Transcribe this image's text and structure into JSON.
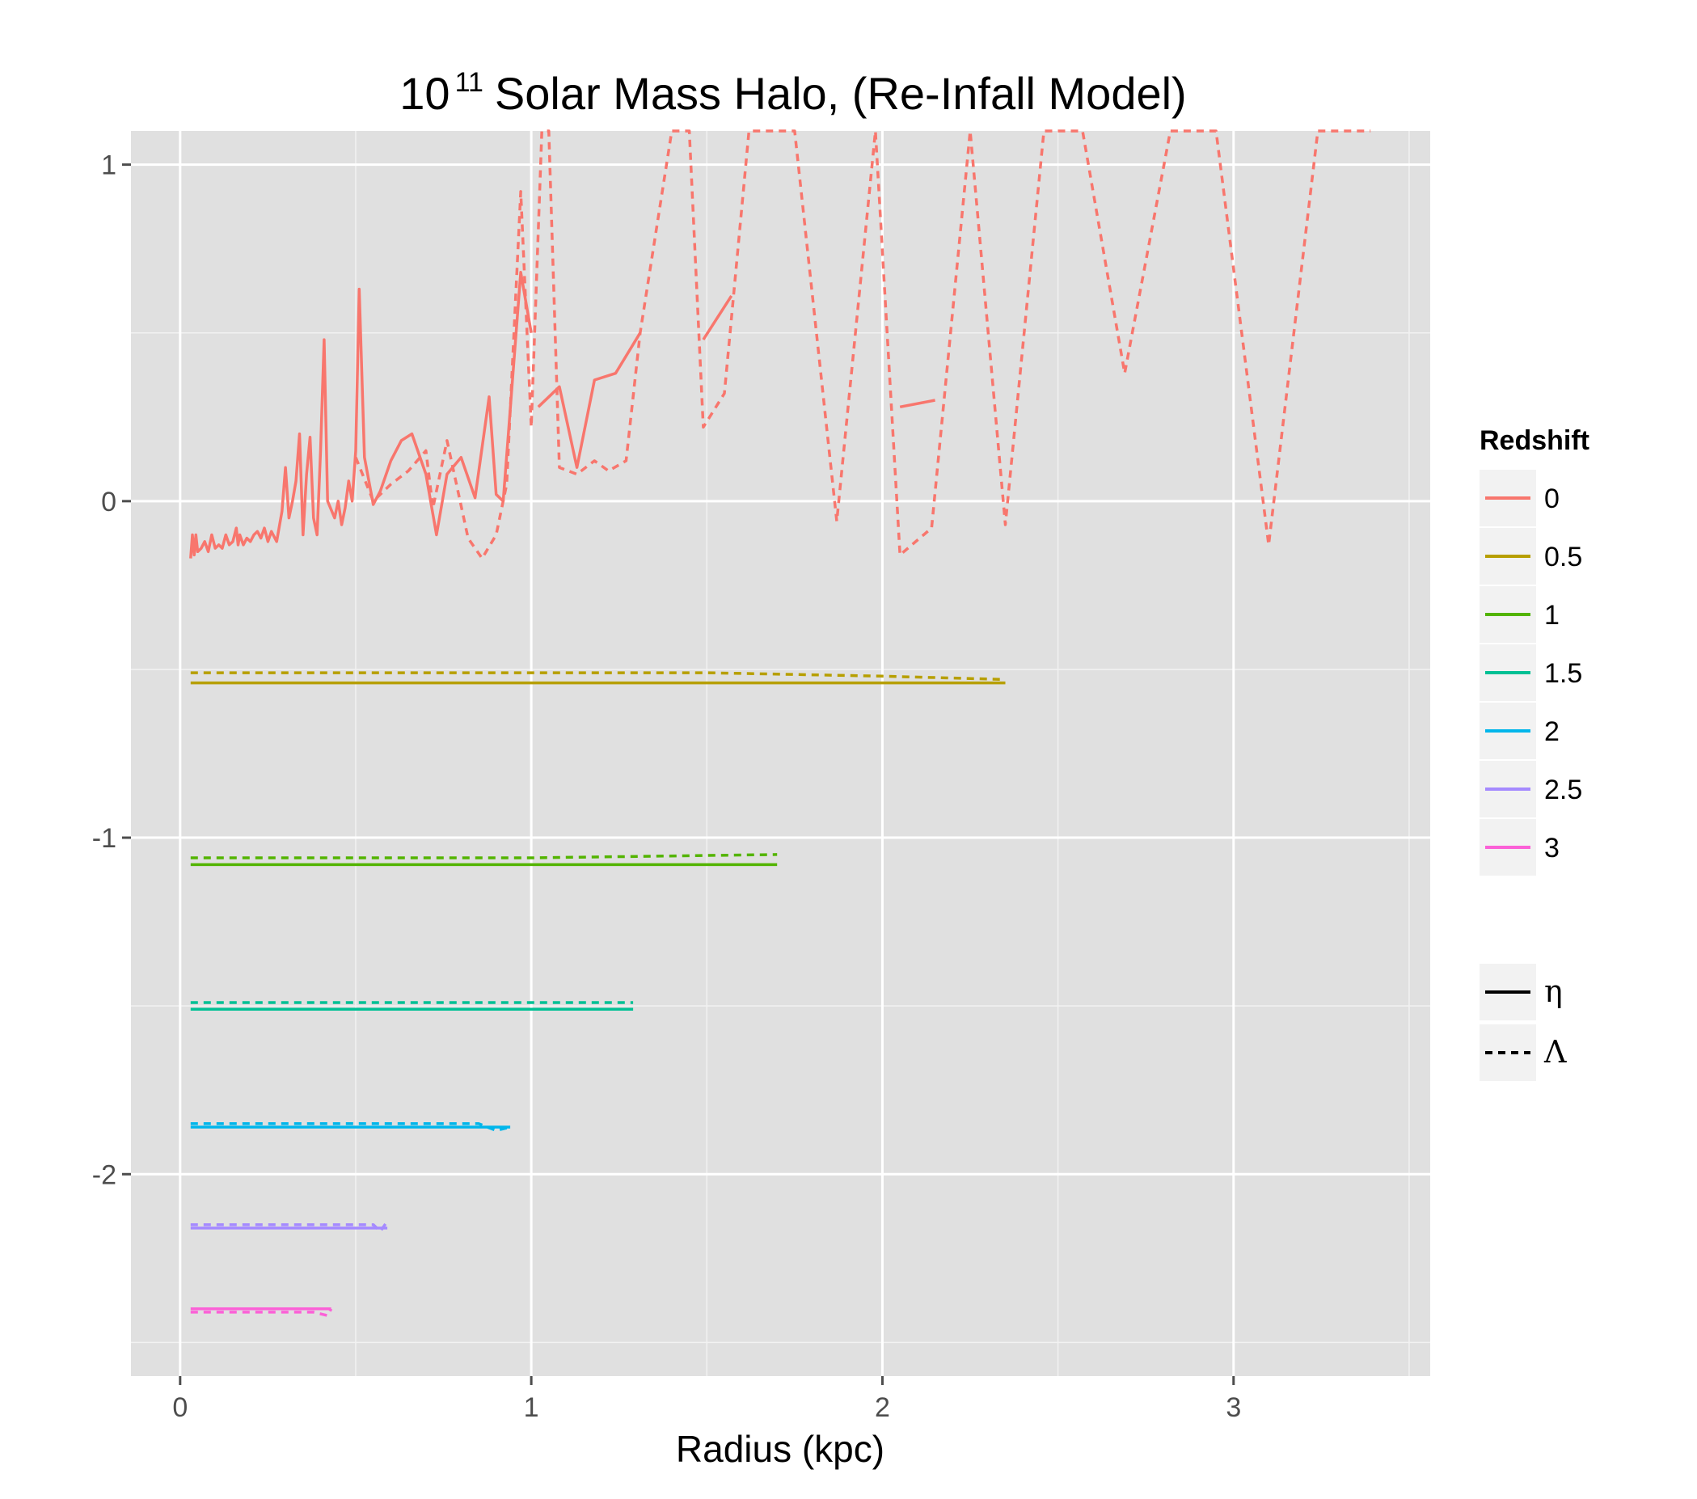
{
  "chart_data": {
    "type": "line",
    "title": {
      "base": "10",
      "exponent": "11",
      "rest": "Solar Mass Halo, (Re-Infall Model)"
    },
    "xlabel": "Radius (kpc)",
    "ylabel": "",
    "xlim": [
      -0.14,
      3.56
    ],
    "ylim": [
      -2.6,
      1.1
    ],
    "x_ticks": [
      0,
      1,
      2,
      3
    ],
    "x_tick_labels": [
      "0",
      "1",
      "2",
      "3"
    ],
    "y_ticks": [
      1,
      0,
      -1,
      -2
    ],
    "y_tick_labels": [
      "1",
      "0",
      "-1",
      "-2"
    ],
    "grid": true,
    "panel_background": "#e0e0e0",
    "legend": {
      "position": "right",
      "color_title": "Redshift",
      "color_items": [
        {
          "label": "0",
          "color": "#f8766d"
        },
        {
          "label": "0.5",
          "color": "#b79f00"
        },
        {
          "label": "1",
          "color": "#53b400"
        },
        {
          "label": "1.5",
          "color": "#00c094"
        },
        {
          "label": "2",
          "color": "#00b6eb"
        },
        {
          "label": "2.5",
          "color": "#a58aff"
        },
        {
          "label": "3",
          "color": "#fb61d7"
        }
      ],
      "linetype_items": [
        {
          "label": "η",
          "linetype": "solid"
        },
        {
          "label": "Λ",
          "linetype": "dashed"
        }
      ]
    },
    "series": [
      {
        "redshift": "0",
        "linetype": "solid",
        "color": "#f8766d",
        "segments": [
          [
            [
              0.03,
              -0.17
            ],
            [
              0.035,
              -0.1
            ],
            [
              0.04,
              -0.16
            ],
            [
              0.045,
              -0.1
            ],
            [
              0.05,
              -0.15
            ],
            [
              0.06,
              -0.14
            ],
            [
              0.07,
              -0.12
            ],
            [
              0.08,
              -0.15
            ],
            [
              0.09,
              -0.1
            ],
            [
              0.1,
              -0.14
            ],
            [
              0.11,
              -0.13
            ],
            [
              0.12,
              -0.14
            ],
            [
              0.13,
              -0.1
            ],
            [
              0.14,
              -0.13
            ],
            [
              0.15,
              -0.12
            ],
            [
              0.16,
              -0.08
            ],
            [
              0.165,
              -0.13
            ],
            [
              0.17,
              -0.1
            ],
            [
              0.18,
              -0.13
            ],
            [
              0.19,
              -0.11
            ],
            [
              0.2,
              -0.12
            ],
            [
              0.21,
              -0.1
            ],
            [
              0.22,
              -0.09
            ],
            [
              0.23,
              -0.11
            ],
            [
              0.24,
              -0.08
            ],
            [
              0.25,
              -0.12
            ],
            [
              0.26,
              -0.09
            ],
            [
              0.275,
              -0.12
            ],
            [
              0.29,
              -0.03
            ],
            [
              0.3,
              0.1
            ],
            [
              0.31,
              -0.05
            ],
            [
              0.32,
              0.0
            ],
            [
              0.33,
              0.06
            ],
            [
              0.34,
              0.2
            ],
            [
              0.35,
              -0.1
            ],
            [
              0.36,
              0.08
            ],
            [
              0.37,
              0.19
            ],
            [
              0.38,
              -0.05
            ],
            [
              0.39,
              -0.1
            ],
            [
              0.4,
              0.15
            ],
            [
              0.41,
              0.48
            ],
            [
              0.42,
              0.0
            ],
            [
              0.44,
              -0.05
            ],
            [
              0.45,
              0.0
            ],
            [
              0.46,
              -0.07
            ],
            [
              0.47,
              -0.02
            ],
            [
              0.48,
              0.06
            ],
            [
              0.49,
              0.0
            ],
            [
              0.5,
              0.15
            ],
            [
              0.51,
              0.63
            ],
            [
              0.525,
              0.13
            ],
            [
              0.55,
              -0.01
            ],
            [
              0.57,
              0.03
            ],
            [
              0.6,
              0.12
            ],
            [
              0.63,
              0.18
            ],
            [
              0.66,
              0.2
            ],
            [
              0.7,
              0.08
            ],
            [
              0.73,
              -0.1
            ],
            [
              0.76,
              0.08
            ],
            [
              0.8,
              0.13
            ],
            [
              0.84,
              0.01
            ],
            [
              0.88,
              0.31
            ],
            [
              0.9,
              0.02
            ],
            [
              0.92,
              0.0
            ],
            [
              0.97,
              0.68
            ],
            [
              1.0,
              0.5
            ]
          ],
          [
            [
              1.02,
              0.28
            ],
            [
              1.08,
              0.34
            ],
            [
              1.13,
              0.1
            ],
            [
              1.18,
              0.36
            ],
            [
              1.24,
              0.38
            ],
            [
              1.31,
              0.5
            ]
          ],
          [
            [
              1.49,
              0.48
            ],
            [
              1.57,
              0.61
            ]
          ],
          [
            [
              2.05,
              0.28
            ],
            [
              2.15,
              0.3
            ]
          ]
        ]
      },
      {
        "redshift": "0",
        "linetype": "dashed",
        "color": "#f8766d",
        "segments": [
          [
            [
              0.5,
              0.13
            ],
            [
              0.55,
              0.0
            ],
            [
              0.6,
              0.05
            ],
            [
              0.65,
              0.09
            ],
            [
              0.7,
              0.15
            ],
            [
              0.72,
              -0.02
            ],
            [
              0.76,
              0.18
            ],
            [
              0.82,
              -0.11
            ],
            [
              0.86,
              -0.17
            ],
            [
              0.9,
              -0.1
            ],
            [
              0.93,
              0.05
            ],
            [
              0.97,
              0.92
            ],
            [
              1.0,
              0.22
            ],
            [
              1.03,
              1.12
            ],
            [
              1.05,
              1.12
            ],
            [
              1.08,
              0.1
            ],
            [
              1.13,
              0.08
            ],
            [
              1.18,
              0.12
            ],
            [
              1.22,
              0.09
            ],
            [
              1.27,
              0.12
            ],
            [
              1.31,
              0.5
            ],
            [
              1.4,
              1.1
            ],
            [
              1.45,
              1.1
            ],
            [
              1.49,
              0.22
            ],
            [
              1.55,
              0.32
            ],
            [
              1.62,
              1.1
            ],
            [
              1.75,
              1.1
            ],
            [
              1.87,
              -0.06
            ],
            [
              1.98,
              1.12
            ],
            [
              2.05,
              -0.16
            ],
            [
              2.14,
              -0.08
            ],
            [
              2.25,
              1.12
            ],
            [
              2.35,
              -0.07
            ],
            [
              2.46,
              1.1
            ],
            [
              2.57,
              1.1
            ],
            [
              2.69,
              0.38
            ],
            [
              2.82,
              1.1
            ],
            [
              2.95,
              1.1
            ],
            [
              3.1,
              -0.13
            ],
            [
              3.24,
              1.1
            ],
            [
              3.39,
              1.1
            ]
          ]
        ]
      },
      {
        "redshift": "0.5",
        "linetype": "solid",
        "color": "#b79f00",
        "segments": [
          [
            [
              0.03,
              -0.54
            ],
            [
              2.35,
              -0.54
            ]
          ]
        ]
      },
      {
        "redshift": "0.5",
        "linetype": "dashed",
        "color": "#b79f00",
        "segments": [
          [
            [
              0.03,
              -0.51
            ],
            [
              1.5,
              -0.51
            ],
            [
              2.0,
              -0.52
            ],
            [
              2.35,
              -0.53
            ]
          ]
        ]
      },
      {
        "redshift": "1",
        "linetype": "solid",
        "color": "#53b400",
        "segments": [
          [
            [
              0.03,
              -1.08
            ],
            [
              1.7,
              -1.08
            ]
          ]
        ]
      },
      {
        "redshift": "1",
        "linetype": "dashed",
        "color": "#53b400",
        "segments": [
          [
            [
              0.03,
              -1.06
            ],
            [
              1.0,
              -1.06
            ],
            [
              1.7,
              -1.05
            ]
          ]
        ]
      },
      {
        "redshift": "1.5",
        "linetype": "solid",
        "color": "#00c094",
        "segments": [
          [
            [
              0.03,
              -1.51
            ],
            [
              1.29,
              -1.51
            ]
          ]
        ]
      },
      {
        "redshift": "1.5",
        "linetype": "dashed",
        "color": "#00c094",
        "segments": [
          [
            [
              0.03,
              -1.49
            ],
            [
              1.29,
              -1.49
            ]
          ]
        ]
      },
      {
        "redshift": "2",
        "linetype": "solid",
        "color": "#00b6eb",
        "segments": [
          [
            [
              0.03,
              -1.86
            ],
            [
              0.94,
              -1.86
            ]
          ]
        ]
      },
      {
        "redshift": "2",
        "linetype": "dashed",
        "color": "#00b6eb",
        "segments": [
          [
            [
              0.03,
              -1.85
            ],
            [
              0.85,
              -1.85
            ],
            [
              0.9,
              -1.87
            ],
            [
              0.94,
              -1.86
            ]
          ]
        ]
      },
      {
        "redshift": "2.5",
        "linetype": "solid",
        "color": "#a58aff",
        "segments": [
          [
            [
              0.03,
              -2.16
            ],
            [
              0.59,
              -2.16
            ]
          ]
        ]
      },
      {
        "redshift": "2.5",
        "linetype": "dashed",
        "color": "#a58aff",
        "segments": [
          [
            [
              0.03,
              -2.15
            ],
            [
              0.55,
              -2.15
            ],
            [
              0.57,
              -2.17
            ],
            [
              0.59,
              -2.14
            ]
          ]
        ]
      },
      {
        "redshift": "3",
        "linetype": "solid",
        "color": "#fb61d7",
        "segments": [
          [
            [
              0.03,
              -2.4
            ],
            [
              0.43,
              -2.4
            ]
          ]
        ]
      },
      {
        "redshift": "3",
        "linetype": "dashed",
        "color": "#fb61d7",
        "segments": [
          [
            [
              0.03,
              -2.41
            ],
            [
              0.38,
              -2.41
            ],
            [
              0.42,
              -2.42
            ],
            [
              0.43,
              -2.4
            ]
          ]
        ]
      }
    ]
  }
}
